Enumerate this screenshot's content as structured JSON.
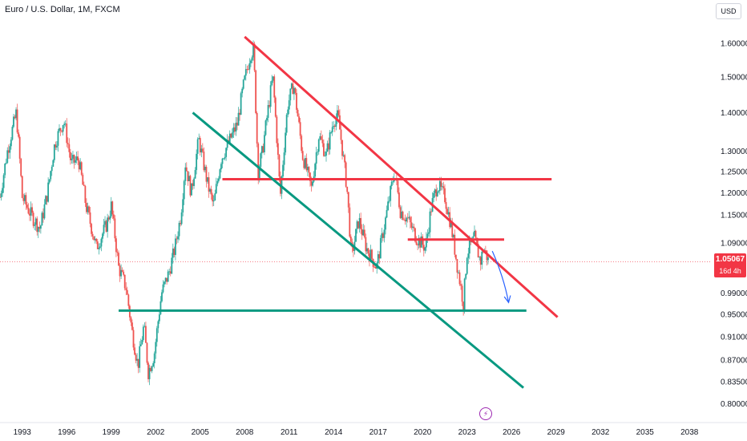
{
  "header": {
    "title": "Euro / U.S. Dollar, 1M, FXCM",
    "currency_button": "USD"
  },
  "last_price": {
    "value": "1.05067",
    "countdown": "16d 4h",
    "color": "#f23645"
  },
  "event_marker": {
    "icon": "lightning-icon",
    "color": "#9c27b0"
  },
  "chart_data": {
    "type": "candlestick",
    "symbol": "EURUSD",
    "interval": "1M",
    "y_scale": "log",
    "ylim": [
      0.78,
      1.66
    ],
    "xlim": [
      1991.5,
      2039.5
    ],
    "grid": false,
    "y_ticks": [
      "1.60000",
      "1.50000",
      "1.40000",
      "1.30000",
      "1.25000",
      "1.20000",
      "1.15000",
      "1.09000",
      "0.99000",
      "0.95000",
      "0.91000",
      "0.87000",
      "0.83500",
      "0.80000"
    ],
    "x_ticks": [
      "1993",
      "1996",
      "1999",
      "2002",
      "2005",
      "2008",
      "2011",
      "2014",
      "2017",
      "2020",
      "2023",
      "2026",
      "2029",
      "2032",
      "2035",
      "2038"
    ],
    "up_color": "#26a69a",
    "down_color": "#ef5350",
    "price_path": [
      [
        1991.5,
        1.19
      ],
      [
        1992.0,
        1.3
      ],
      [
        1992.6,
        1.4
      ],
      [
        1993.0,
        1.19
      ],
      [
        1993.6,
        1.15
      ],
      [
        1994.2,
        1.12
      ],
      [
        1994.7,
        1.2
      ],
      [
        1995.2,
        1.32
      ],
      [
        1995.8,
        1.38
      ],
      [
        1996.3,
        1.27
      ],
      [
        1996.8,
        1.28
      ],
      [
        1997.3,
        1.17
      ],
      [
        1998.0,
        1.08
      ],
      [
        1998.7,
        1.13
      ],
      [
        1999.0,
        1.17
      ],
      [
        1999.5,
        1.04
      ],
      [
        2000.0,
        1.0
      ],
      [
        2000.4,
        0.92
      ],
      [
        2000.8,
        0.86
      ],
      [
        2001.2,
        0.93
      ],
      [
        2001.5,
        0.85
      ],
      [
        2001.9,
        0.88
      ],
      [
        2002.4,
        0.99
      ],
      [
        2002.9,
        1.03
      ],
      [
        2003.3,
        1.08
      ],
      [
        2003.7,
        1.15
      ],
      [
        2004.0,
        1.27
      ],
      [
        2004.4,
        1.2
      ],
      [
        2004.9,
        1.33
      ],
      [
        2005.5,
        1.22
      ],
      [
        2005.9,
        1.17
      ],
      [
        2006.4,
        1.28
      ],
      [
        2006.9,
        1.32
      ],
      [
        2007.5,
        1.37
      ],
      [
        2007.9,
        1.47
      ],
      [
        2008.4,
        1.57
      ],
      [
        2008.6,
        1.58
      ],
      [
        2008.9,
        1.25
      ],
      [
        2009.2,
        1.3
      ],
      [
        2009.9,
        1.5
      ],
      [
        2010.4,
        1.19
      ],
      [
        2010.9,
        1.42
      ],
      [
        2011.3,
        1.48
      ],
      [
        2011.9,
        1.29
      ],
      [
        2012.5,
        1.21
      ],
      [
        2013.0,
        1.34
      ],
      [
        2013.5,
        1.29
      ],
      [
        2014.0,
        1.38
      ],
      [
        2014.3,
        1.39
      ],
      [
        2014.9,
        1.21
      ],
      [
        2015.2,
        1.06
      ],
      [
        2015.7,
        1.14
      ],
      [
        2016.2,
        1.08
      ],
      [
        2016.9,
        1.04
      ],
      [
        2017.5,
        1.14
      ],
      [
        2018.1,
        1.25
      ],
      [
        2018.5,
        1.16
      ],
      [
        2019.0,
        1.14
      ],
      [
        2019.6,
        1.1
      ],
      [
        2020.2,
        1.08
      ],
      [
        2020.6,
        1.17
      ],
      [
        2021.0,
        1.22
      ],
      [
        2021.5,
        1.19
      ],
      [
        2021.9,
        1.13
      ],
      [
        2022.3,
        1.05
      ],
      [
        2022.75,
        0.97
      ],
      [
        2023.0,
        1.07
      ],
      [
        2023.5,
        1.1
      ],
      [
        2023.9,
        1.05
      ],
      [
        2024.1,
        1.08
      ],
      [
        2024.3,
        1.065
      ],
      [
        2024.45,
        1.0507
      ]
    ],
    "drawings": [
      {
        "kind": "line",
        "color": "#f23645",
        "from": [
          2008.0,
          1.62
        ],
        "to": [
          2029.1,
          0.945
        ]
      },
      {
        "kind": "line",
        "color": "#f23645",
        "from": [
          2006.5,
          1.232
        ],
        "to": [
          2028.7,
          1.232
        ]
      },
      {
        "kind": "line",
        "color": "#f23645",
        "from": [
          2019.0,
          1.097
        ],
        "to": [
          2025.5,
          1.097
        ]
      },
      {
        "kind": "line",
        "color": "#089981",
        "from": [
          2004.5,
          1.4
        ],
        "to": [
          2026.8,
          0.825
        ]
      },
      {
        "kind": "line",
        "color": "#089981",
        "from": [
          1999.5,
          0.957
        ],
        "to": [
          2027.0,
          0.957
        ]
      },
      {
        "kind": "arrow",
        "color": "#2962ff",
        "from": [
          2024.7,
          1.073
        ],
        "to": [
          2025.8,
          0.972
        ]
      }
    ]
  }
}
